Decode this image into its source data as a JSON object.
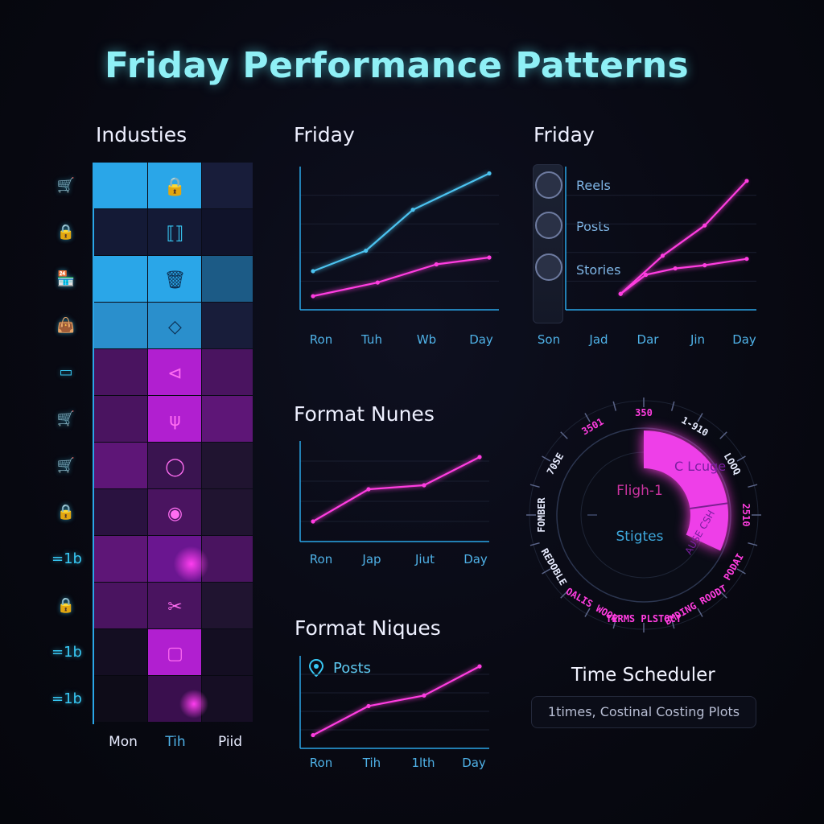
{
  "page": {
    "title": "Friday Performance Patterns"
  },
  "heatmap": {
    "title": "Industies",
    "columns": [
      "Mon",
      "Tih",
      "Piid"
    ],
    "column_colors": [
      "#e8ecff",
      "#4fb2e8",
      "#e8ecff"
    ],
    "row_icons": [
      "cart-icon",
      "lock-icon",
      "store-icon",
      "bag-icon",
      "card-icon",
      "cart-icon",
      "cart-icon",
      "lock-icon",
      "tag-icon",
      "lock-icon",
      "tag-icon",
      "tag-icon"
    ],
    "row_icon_glyphs": [
      "🛒",
      "🔒",
      "🏪",
      "👜",
      "▭",
      "🛒",
      "🛒",
      "🔒",
      "≡",
      "🔒",
      "≡",
      "≡"
    ],
    "row_icon_texts": [
      "",
      "",
      "",
      "",
      "",
      "",
      "",
      "",
      "=1b",
      "",
      "=1b",
      "=1b"
    ]
  },
  "chart_data": [
    {
      "id": "friday-line-1",
      "type": "line",
      "title": "Friday",
      "categories": [
        "Ron",
        "Tuh",
        "Wb",
        "Day"
      ],
      "series": [
        {
          "color": "#4cc3f0",
          "values": [
            [
              0,
              5.7
            ],
            [
              0.9,
              6.6
            ],
            [
              1.7,
              8.4
            ],
            [
              3.0,
              10.0
            ]
          ]
        },
        {
          "color": "#ff3de0",
          "values": [
            [
              0,
              4.6
            ],
            [
              1.1,
              5.2
            ],
            [
              2.1,
              6.0
            ],
            [
              3.0,
              6.3
            ]
          ]
        }
      ],
      "ylim": [
        4.0,
        10.3
      ]
    },
    {
      "id": "friday-line-2",
      "type": "line",
      "title": "Friday",
      "categories": [
        "Son",
        "Jad",
        "Dar",
        "Jin",
        "Day"
      ],
      "legend": [
        {
          "label": "Reels",
          "icon": "clock-icon"
        },
        {
          "label": "Posts",
          "icon": "clock-icon"
        },
        {
          "label": "Stories",
          "icon": "clock-icon"
        }
      ],
      "series": [
        {
          "color": "#ff3de0",
          "values": [
            [
              1,
              1.0
            ],
            [
              2,
              3.4
            ],
            [
              3,
              5.3
            ],
            [
              4,
              8.1
            ]
          ]
        },
        {
          "color": "#ff3de0",
          "values": [
            [
              1,
              1.0
            ],
            [
              1.6,
              2.2
            ],
            [
              2.3,
              2.6
            ],
            [
              3.0,
              2.8
            ],
            [
              4,
              3.2
            ]
          ]
        }
      ],
      "ylim": [
        0,
        9
      ]
    },
    {
      "id": "format-nunes",
      "type": "line",
      "title": "Format Nunes",
      "categories": [
        "Ron",
        "Jap",
        "Jiut",
        "Day"
      ],
      "series": [
        {
          "color": "#ff3de0",
          "values": [
            [
              0,
              1.0
            ],
            [
              1,
              2.6
            ],
            [
              2,
              2.8
            ],
            [
              3,
              4.2
            ]
          ]
        }
      ],
      "ylim": [
        0,
        5
      ]
    },
    {
      "id": "format-niques",
      "type": "line",
      "title": "Format Niques",
      "categories": [
        "Ron",
        "Tih",
        "1lth",
        "Day"
      ],
      "legend": [
        {
          "label": "Posts",
          "icon": "map-pin-icon"
        }
      ],
      "series": [
        {
          "color": "#ff3de0",
          "values": [
            [
              0,
              1.0
            ],
            [
              1,
              3.2
            ],
            [
              2,
              4.0
            ],
            [
              3,
              6.2
            ]
          ]
        }
      ],
      "ylim": [
        0,
        7
      ]
    }
  ],
  "radial": {
    "center_top": "Fligh-1",
    "center_bottom": "Stigtes",
    "outer_labels": [
      "350",
      "1-910",
      "LOOQ",
      "2510",
      "PODAI",
      "BMDING ROODT",
      "TERMS PLSTOCT",
      "OALIS WOON",
      "REDOBLE",
      "FOMBER",
      "70SE",
      "3501"
    ],
    "segment_text": [
      "C Lcuge",
      "AUSE CSH"
    ],
    "highlight_start_deg": 0,
    "highlight_end_deg": 115
  },
  "time_scheduler": {
    "title": "Time Scheduler",
    "caption": "1times, Costinal Costing Plots"
  },
  "colors": {
    "cyan": "#4cc3f0",
    "magenta": "#ff3de0",
    "title": "#8ff0f6"
  }
}
